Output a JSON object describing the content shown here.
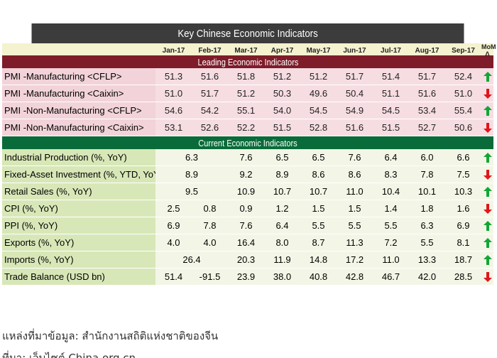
{
  "title": "Key Chinese Economic Indicators",
  "months": [
    "Jan-17",
    "Feb-17",
    "Mar-17",
    "Apr-17",
    "May-17",
    "Jun-17",
    "Jul-17",
    "Aug-17",
    "Sep-17"
  ],
  "mom_label": "MoM Δ",
  "leading_title": "Leading Economic Indicators",
  "current_title": "Current Economic Indicators",
  "leading": [
    {
      "label": "PMI -Manufacturing <CFLP>",
      "values": [
        "51.3",
        "51.6",
        "51.8",
        "51.2",
        "51.2",
        "51.7",
        "51.4",
        "51.7",
        "52.4"
      ],
      "trend": "up"
    },
    {
      "label": "PMI -Manufacturing <Caixin>",
      "values": [
        "51.0",
        "51.7",
        "51.2",
        "50.3",
        "49.6",
        "50.4",
        "51.1",
        "51.6",
        "51.0"
      ],
      "trend": "down"
    },
    {
      "label": "PMI -Non-Manufacturing <CFLP>",
      "values": [
        "54.6",
        "54.2",
        "55.1",
        "54.0",
        "54.5",
        "54.9",
        "54.5",
        "53.4",
        "55.4"
      ],
      "trend": "up"
    },
    {
      "label": "PMI -Non-Manufacturing <Caixin>",
      "values": [
        "53.1",
        "52.6",
        "52.2",
        "51.5",
        "52.8",
        "51.6",
        "51.5",
        "52.7",
        "50.6"
      ],
      "trend": "down"
    }
  ],
  "current": [
    {
      "label": "Industrial Production (%, YoY)",
      "values": [
        "6.3",
        "",
        "7.6",
        "6.5",
        "6.5",
        "7.6",
        "6.4",
        "6.0",
        "6.6"
      ],
      "trend": "up",
      "merged": "jan-feb"
    },
    {
      "label": "Fixed-Asset Investment (%, YTD, YoY)",
      "values": [
        "8.9",
        "",
        "9.2",
        "8.9",
        "8.6",
        "8.6",
        "8.3",
        "7.8",
        "7.5"
      ],
      "trend": "down",
      "merged": "jan-feb"
    },
    {
      "label": "Retail Sales (%, YoY)",
      "values": [
        "9.5",
        "",
        "10.9",
        "10.7",
        "10.7",
        "11.0",
        "10.4",
        "10.1",
        "10.3"
      ],
      "trend": "up",
      "merged": "jan-feb"
    },
    {
      "label": "CPI (%, YoY)",
      "values": [
        "2.5",
        "0.8",
        "0.9",
        "1.2",
        "1.5",
        "1.5",
        "1.4",
        "1.8",
        "1.6"
      ],
      "trend": "down"
    },
    {
      "label": "PPI (%, YoY)",
      "values": [
        "6.9",
        "7.8",
        "7.6",
        "6.4",
        "5.5",
        "5.5",
        "5.5",
        "6.3",
        "6.9"
      ],
      "trend": "up"
    },
    {
      "label": "Exports (%, YoY)",
      "values": [
        "4.0",
        "4.0",
        "16.4",
        "8.0",
        "8.7",
        "11.3",
        "7.2",
        "5.5",
        "8.1"
      ],
      "trend": "up"
    },
    {
      "label": "Imports (%, YoY)",
      "values": [
        "26.4",
        "",
        "20.3",
        "11.9",
        "14.8",
        "17.2",
        "11.0",
        "13.3",
        "18.7"
      ],
      "trend": "up",
      "merged": "jan-feb"
    },
    {
      "label": "Trade Balance (USD bn)",
      "values": [
        "51.4",
        "-91.5",
        "23.9",
        "38.0",
        "40.8",
        "42.8",
        "46.7",
        "42.0",
        "28.5"
      ],
      "trend": "down"
    }
  ],
  "colors": {
    "up": "#13a538",
    "down": "#e0161b"
  },
  "source_text": "แหล่งที่มาข้อมูล: สำนักงานสถิติแห่งชาติของจีน",
  "footer_text": "ที่มา: เว็บไซต์ China.org.cn"
}
